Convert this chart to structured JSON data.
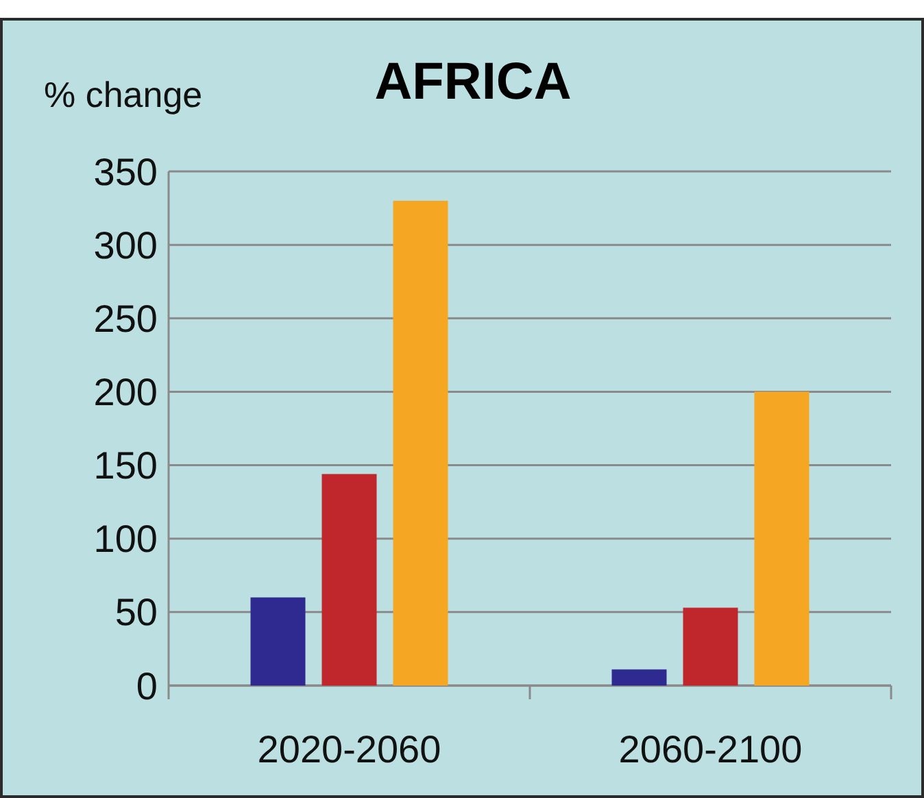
{
  "chart_data": {
    "type": "bar",
    "title": "AFRICA",
    "ylabel": "% change",
    "categories": [
      "2020-2060",
      "2060-2100"
    ],
    "series": [
      {
        "color": "#2e2a8f",
        "values": [
          60,
          11
        ]
      },
      {
        "color": "#c0272d",
        "values": [
          144,
          53
        ]
      },
      {
        "color": "#f5a623",
        "values": [
          330,
          200
        ]
      }
    ],
    "ylim": [
      0,
      350
    ],
    "yticks": [
      0,
      50,
      100,
      150,
      200,
      250,
      300,
      350
    ],
    "grid": "y"
  }
}
